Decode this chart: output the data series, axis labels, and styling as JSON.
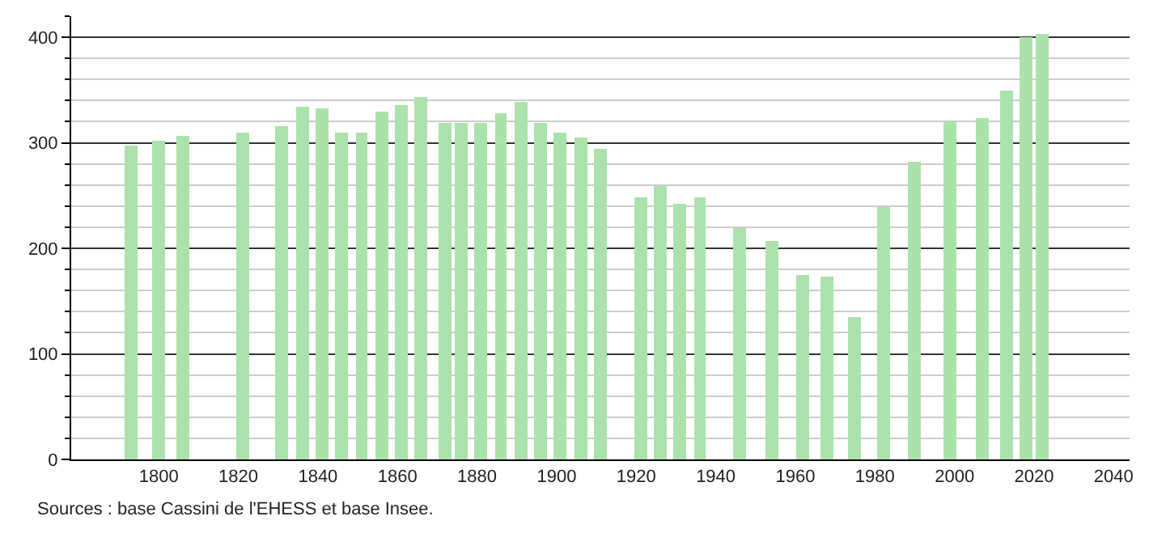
{
  "chart_data": {
    "type": "bar",
    "x": [
      1793,
      1800,
      1806,
      1821,
      1831,
      1836,
      1841,
      1846,
      1851,
      1856,
      1861,
      1866,
      1872,
      1876,
      1881,
      1886,
      1891,
      1896,
      1901,
      1906,
      1911,
      1921,
      1926,
      1931,
      1936,
      1946,
      1954,
      1962,
      1968,
      1975,
      1982,
      1990,
      1999,
      2007,
      2013,
      2018,
      2022
    ],
    "values": [
      297,
      302,
      306,
      310,
      316,
      334,
      332,
      310,
      310,
      329,
      336,
      343,
      319,
      319,
      319,
      328,
      339,
      319,
      310,
      305,
      295,
      248,
      259,
      242,
      249,
      219,
      207,
      174,
      173,
      135,
      239,
      282,
      320,
      323,
      349,
      400,
      403
    ],
    "color": "#abe2ab",
    "xlim": [
      1778,
      2044
    ],
    "xticks": [
      1800,
      1820,
      1840,
      1860,
      1880,
      1900,
      1920,
      1940,
      1960,
      1980,
      2000,
      2020,
      2040
    ],
    "ylim": [
      0,
      420
    ],
    "yticks": [
      0,
      100,
      200,
      300,
      400
    ],
    "grid": "y",
    "annotations": [
      "Sources : base Cassini de l'EHESS et base Insee."
    ]
  }
}
